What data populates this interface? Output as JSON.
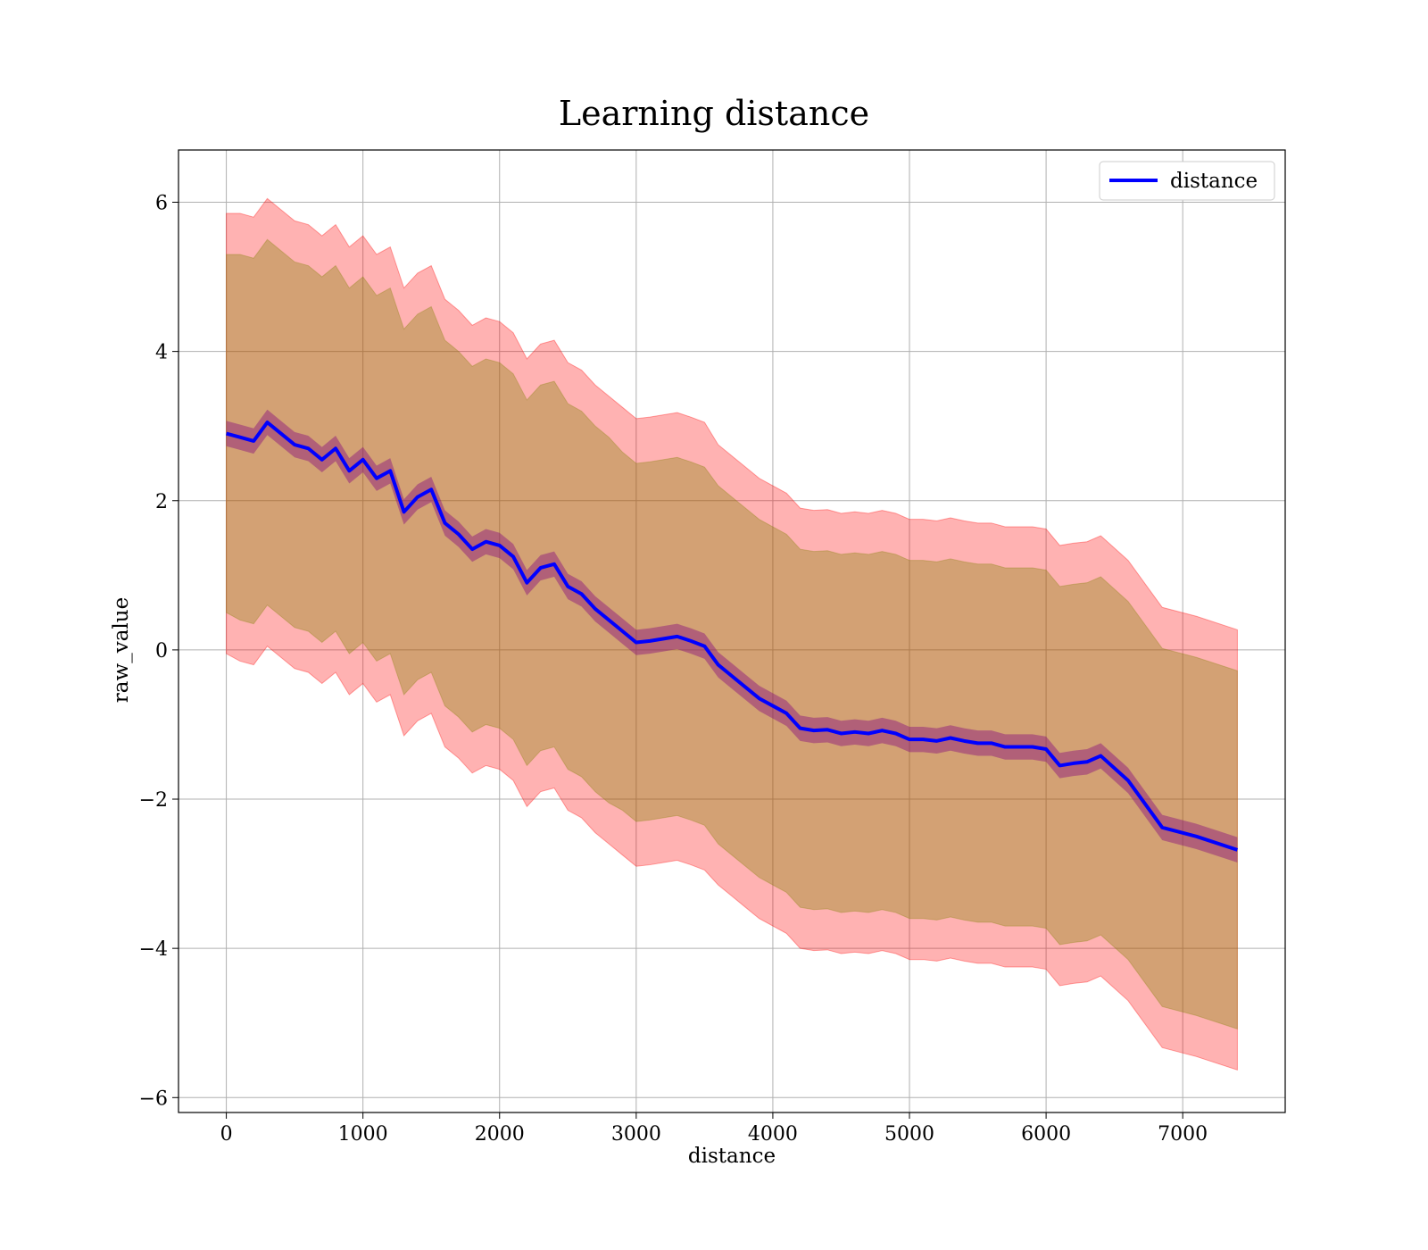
{
  "chart_data": {
    "type": "line",
    "title": "Learning distance",
    "xlabel": "distance",
    "ylabel": "raw_value",
    "xlim": [
      -350,
      7750
    ],
    "ylim": [
      -6.2,
      6.7
    ],
    "xticks": [
      0,
      1000,
      2000,
      3000,
      4000,
      5000,
      6000,
      7000
    ],
    "yticks": [
      -6,
      -4,
      -2,
      0,
      2,
      4,
      6
    ],
    "xtick_labels": [
      "0",
      "1000",
      "2000",
      "3000",
      "4000",
      "5000",
      "6000",
      "7000"
    ],
    "ytick_labels": [
      "−6",
      "−4",
      "−2",
      "0",
      "2",
      "4",
      "6"
    ],
    "grid": true,
    "legend": {
      "position": "top-right",
      "entries": [
        "distance"
      ]
    },
    "colors": {
      "line": "#0000ff",
      "outer_band": "#ff0000",
      "inner_band": "#808000",
      "line_band": "#800080"
    },
    "series": [
      {
        "name": "distance",
        "x": [
          0,
          100,
          200,
          300,
          400,
          500,
          600,
          700,
          800,
          900,
          1000,
          1100,
          1200,
          1300,
          1400,
          1500,
          1600,
          1700,
          1800,
          1900,
          2000,
          2100,
          2200,
          2300,
          2400,
          2500,
          2600,
          2700,
          2800,
          2900,
          3000,
          3100,
          3200,
          3300,
          3400,
          3500,
          3600,
          3700,
          3800,
          3900,
          4000,
          4100,
          4200,
          4300,
          4400,
          4500,
          4600,
          4700,
          4800,
          4900,
          5000,
          5100,
          5200,
          5300,
          5400,
          5500,
          5600,
          5700,
          5800,
          5900,
          6000,
          6100,
          6200,
          6300,
          6400,
          6600,
          6850,
          7100,
          7400
        ],
        "y": [
          2.9,
          2.85,
          2.8,
          3.05,
          2.9,
          2.75,
          2.7,
          2.55,
          2.7,
          2.4,
          2.55,
          2.3,
          2.4,
          1.85,
          2.05,
          2.15,
          1.7,
          1.55,
          1.35,
          1.45,
          1.4,
          1.25,
          0.9,
          1.1,
          1.15,
          0.85,
          0.75,
          0.55,
          0.4,
          0.25,
          0.1,
          0.12,
          0.15,
          0.18,
          0.12,
          0.05,
          -0.2,
          -0.35,
          -0.5,
          -0.65,
          -0.75,
          -0.85,
          -1.05,
          -1.08,
          -1.07,
          -1.12,
          -1.1,
          -1.12,
          -1.08,
          -1.12,
          -1.2,
          -1.2,
          -1.22,
          -1.18,
          -1.22,
          -1.25,
          -1.25,
          -1.3,
          -1.3,
          -1.3,
          -1.33,
          -1.55,
          -1.52,
          -1.5,
          -1.42,
          -1.75,
          -2.38,
          -2.5,
          -2.68
        ],
        "inner_band_halfwidth": [
          2.4,
          2.45,
          2.45,
          2.45,
          2.45,
          2.45,
          2.45,
          2.45,
          2.45,
          2.45,
          2.45,
          2.45,
          2.45,
          2.45,
          2.45,
          2.45,
          2.45,
          2.45,
          2.45,
          2.45,
          2.45,
          2.45,
          2.45,
          2.45,
          2.45,
          2.45,
          2.45,
          2.45,
          2.45,
          2.4,
          2.4,
          2.4,
          2.4,
          2.4,
          2.4,
          2.4,
          2.4,
          2.4,
          2.4,
          2.4,
          2.4,
          2.4,
          2.4,
          2.4,
          2.4,
          2.4,
          2.4,
          2.4,
          2.4,
          2.4,
          2.4,
          2.4,
          2.4,
          2.4,
          2.4,
          2.4,
          2.4,
          2.4,
          2.4,
          2.4,
          2.4,
          2.4,
          2.4,
          2.4,
          2.4,
          2.4,
          2.4,
          2.4,
          2.4
        ],
        "outer_band_halfwidth": [
          2.95,
          3.0,
          3.0,
          3.0,
          3.0,
          3.0,
          3.0,
          3.0,
          3.0,
          3.0,
          3.0,
          3.0,
          3.0,
          3.0,
          3.0,
          3.0,
          3.0,
          3.0,
          3.0,
          3.0,
          3.0,
          3.0,
          3.0,
          3.0,
          3.0,
          3.0,
          3.0,
          3.0,
          3.0,
          3.0,
          3.0,
          3.0,
          3.0,
          3.0,
          3.0,
          3.0,
          2.95,
          2.95,
          2.95,
          2.95,
          2.95,
          2.95,
          2.95,
          2.95,
          2.95,
          2.95,
          2.95,
          2.95,
          2.95,
          2.95,
          2.95,
          2.95,
          2.95,
          2.95,
          2.95,
          2.95,
          2.95,
          2.95,
          2.95,
          2.95,
          2.95,
          2.95,
          2.95,
          2.95,
          2.95,
          2.95,
          2.95,
          2.95,
          2.95
        ],
        "line_band_halfwidth": 0.17
      }
    ]
  }
}
